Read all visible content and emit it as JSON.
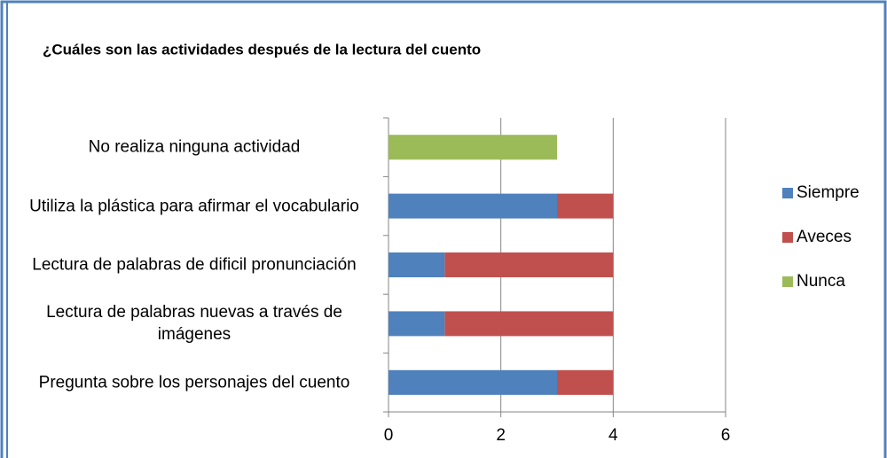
{
  "chart_data": {
    "type": "stacked_barh",
    "title": "¿Cuáles son las actividades después de la lectura del cuento",
    "categories": [
      "No realiza ninguna actividad",
      "Utiliza la plástica para afirmar el vocabulario",
      "Lectura de palabras de dificil pronunciación",
      "Lectura de palabras nuevas a través de imágenes",
      "Pregunta sobre los personajes del cuento"
    ],
    "series": [
      {
        "name": "Siempre",
        "color": "#4f81bd",
        "values": [
          null,
          3,
          1,
          1,
          3
        ]
      },
      {
        "name": "Aveces",
        "color": "#c0504d",
        "values": [
          null,
          1,
          3,
          3,
          1
        ]
      },
      {
        "name": "Nunca",
        "color": "#9bbb59",
        "values": [
          3,
          null,
          null,
          null,
          null
        ]
      }
    ],
    "xlim": [
      0,
      6
    ],
    "xticks": [
      0,
      2,
      4,
      6
    ],
    "grid": true,
    "legend": "right"
  }
}
